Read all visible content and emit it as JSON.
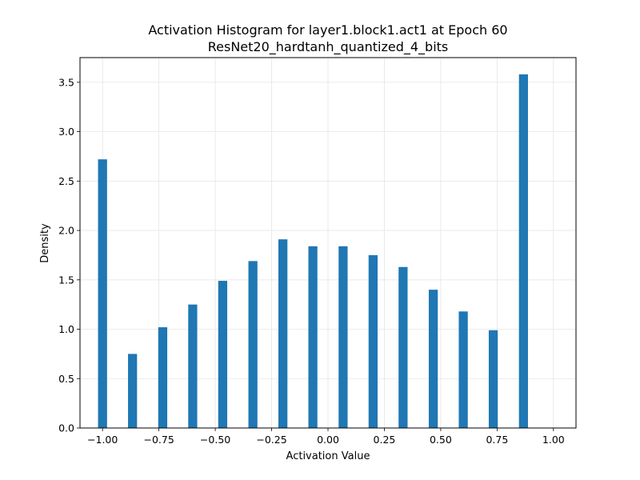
{
  "chart_data": {
    "type": "bar",
    "title": "Activation Histogram for layer1.block1.act1 at Epoch 60",
    "subtitle": "ResNet20_hardtanh_quantized_4_bits",
    "xlabel": "Activation Value",
    "ylabel": "Density",
    "xlim": [
      -1.1,
      1.1
    ],
    "ylim": [
      0,
      3.75
    ],
    "xticks": [
      -1.0,
      -0.75,
      -0.5,
      -0.25,
      0.0,
      0.25,
      0.5,
      0.75,
      1.0
    ],
    "xtick_labels": [
      "−1.00",
      "−0.75",
      "−0.50",
      "−0.25",
      "0.00",
      "0.25",
      "0.50",
      "0.75",
      "1.00"
    ],
    "yticks": [
      0.0,
      0.5,
      1.0,
      1.5,
      2.0,
      2.5,
      3.0,
      3.5
    ],
    "ytick_labels": [
      "0.0",
      "0.5",
      "1.0",
      "1.5",
      "2.0",
      "2.5",
      "3.0",
      "3.5"
    ],
    "grid": true,
    "bar_color": "#1f77b4",
    "bin_width": 0.04,
    "bars": [
      {
        "x": -1.0,
        "value": 2.72
      },
      {
        "x": -0.867,
        "value": 0.75
      },
      {
        "x": -0.733,
        "value": 1.02
      },
      {
        "x": -0.6,
        "value": 1.25
      },
      {
        "x": -0.467,
        "value": 1.49
      },
      {
        "x": -0.333,
        "value": 1.69
      },
      {
        "x": -0.2,
        "value": 1.91
      },
      {
        "x": -0.067,
        "value": 1.84
      },
      {
        "x": 0.067,
        "value": 1.84
      },
      {
        "x": 0.2,
        "value": 1.75
      },
      {
        "x": 0.333,
        "value": 1.63
      },
      {
        "x": 0.467,
        "value": 1.4
      },
      {
        "x": 0.6,
        "value": 1.18
      },
      {
        "x": 0.733,
        "value": 0.99
      },
      {
        "x": 0.867,
        "value": 3.58
      }
    ]
  }
}
